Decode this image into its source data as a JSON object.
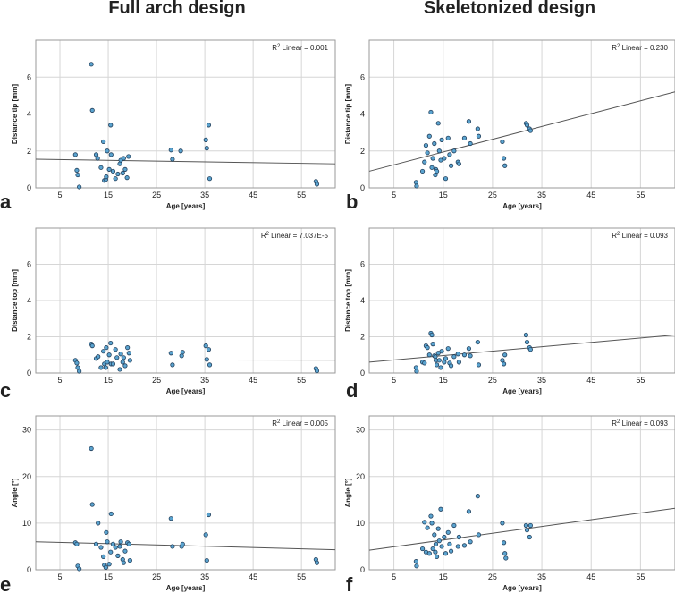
{
  "columns": [
    "Full arch design",
    "Skeletonized design"
  ],
  "chart_data": [
    {
      "panel": "a",
      "type": "scatter",
      "xlabel": "Age [years]",
      "ylabel": "Distance tip [mm]",
      "xlim": [
        0,
        62
      ],
      "ylim": [
        0,
        8
      ],
      "xticks": [
        5,
        15,
        25,
        35,
        45,
        55
      ],
      "yticks": [
        0,
        2,
        4,
        6
      ],
      "r2_label": "Linear = 0.001",
      "fit": {
        "x0": 0,
        "y0": 1.55,
        "x1": 62,
        "y1": 1.3
      },
      "points": [
        [
          8.2,
          1.8
        ],
        [
          8.5,
          0.95
        ],
        [
          8.7,
          0.7
        ],
        [
          9,
          0.05
        ],
        [
          11.5,
          6.7
        ],
        [
          11.7,
          4.2
        ],
        [
          12.5,
          1.8
        ],
        [
          12.8,
          1.6
        ],
        [
          13.5,
          1.1
        ],
        [
          14,
          2.5
        ],
        [
          14.2,
          0.4
        ],
        [
          14.5,
          0.45
        ],
        [
          14.6,
          0.6
        ],
        [
          14.8,
          2.0
        ],
        [
          15.2,
          1.0
        ],
        [
          15.5,
          3.4
        ],
        [
          15.6,
          1.8
        ],
        [
          16,
          0.9
        ],
        [
          16.5,
          0.5
        ],
        [
          17,
          0.75
        ],
        [
          17.4,
          1.3
        ],
        [
          17.6,
          1.5
        ],
        [
          18,
          0.8
        ],
        [
          18.2,
          1.6
        ],
        [
          18.5,
          1.0
        ],
        [
          18.9,
          0.55
        ],
        [
          19.2,
          1.7
        ],
        [
          28,
          2.05
        ],
        [
          28.3,
          1.55
        ],
        [
          30,
          2.0
        ],
        [
          35.2,
          2.6
        ],
        [
          35.4,
          2.15
        ],
        [
          35.8,
          3.4
        ],
        [
          36.0,
          0.5
        ],
        [
          58,
          0.35
        ],
        [
          58.2,
          0.2
        ]
      ]
    },
    {
      "panel": "b",
      "type": "scatter",
      "xlabel": "Age [years]",
      "ylabel": "Distance tip [mm]",
      "xlim": [
        0,
        62
      ],
      "ylim": [
        0,
        8
      ],
      "xticks": [
        5,
        15,
        25,
        35,
        45,
        55
      ],
      "yticks": [
        0,
        2,
        4,
        6
      ],
      "r2_label": "Linear = 0.230",
      "fit": {
        "x0": 0,
        "y0": 0.9,
        "x1": 62,
        "y1": 5.2
      },
      "points": [
        [
          9.5,
          0.3
        ],
        [
          9.6,
          0.1
        ],
        [
          10.8,
          0.9
        ],
        [
          11.2,
          1.4
        ],
        [
          11.5,
          2.3
        ],
        [
          11.8,
          1.9
        ],
        [
          12.2,
          2.8
        ],
        [
          12.5,
          4.1
        ],
        [
          12.7,
          1.1
        ],
        [
          12.9,
          1.6
        ],
        [
          13.2,
          2.4
        ],
        [
          13.4,
          0.7
        ],
        [
          13.5,
          1.0
        ],
        [
          13.7,
          0.9
        ],
        [
          14.0,
          3.5
        ],
        [
          14.2,
          2.0
        ],
        [
          14.5,
          1.5
        ],
        [
          14.7,
          2.6
        ],
        [
          15.2,
          1.6
        ],
        [
          15.5,
          0.5
        ],
        [
          16,
          2.7
        ],
        [
          16.3,
          1.8
        ],
        [
          16.6,
          1.2
        ],
        [
          17.2,
          2.0
        ],
        [
          18,
          1.4
        ],
        [
          18.2,
          1.3
        ],
        [
          19.3,
          2.7
        ],
        [
          20.2,
          3.6
        ],
        [
          20.5,
          2.4
        ],
        [
          22,
          3.2
        ],
        [
          22.2,
          2.8
        ],
        [
          27,
          2.5
        ],
        [
          27.3,
          1.6
        ],
        [
          27.5,
          1.2
        ],
        [
          31.8,
          3.5
        ],
        [
          32,
          3.4
        ],
        [
          32.5,
          3.2
        ],
        [
          32.7,
          3.1
        ]
      ]
    },
    {
      "panel": "c",
      "type": "scatter",
      "xlabel": "Age [years]",
      "ylabel": "Distance top [mm]",
      "xlim": [
        0,
        62
      ],
      "ylim": [
        0,
        8
      ],
      "xticks": [
        5,
        15,
        25,
        35,
        45,
        55
      ],
      "yticks": [
        0,
        2,
        4,
        6
      ],
      "r2_label": "Linear = 7.037E-5",
      "fit": {
        "x0": 0,
        "y0": 0.72,
        "x1": 62,
        "y1": 0.71
      },
      "points": [
        [
          8.2,
          0.7
        ],
        [
          8.5,
          0.55
        ],
        [
          8.7,
          0.3
        ],
        [
          9,
          0.1
        ],
        [
          11.5,
          1.6
        ],
        [
          11.7,
          1.5
        ],
        [
          12.5,
          0.8
        ],
        [
          12.9,
          0.9
        ],
        [
          13.5,
          0.3
        ],
        [
          14,
          1.2
        ],
        [
          14.2,
          0.5
        ],
        [
          14.5,
          0.3
        ],
        [
          14.6,
          1.4
        ],
        [
          14.8,
          0.6
        ],
        [
          15.2,
          1.0
        ],
        [
          15.5,
          1.65
        ],
        [
          15.6,
          0.5
        ],
        [
          16,
          0.5
        ],
        [
          16.5,
          1.3
        ],
        [
          16.8,
          0.85
        ],
        [
          17.4,
          0.2
        ],
        [
          17.6,
          1.05
        ],
        [
          18,
          0.6
        ],
        [
          18.2,
          0.85
        ],
        [
          18.5,
          0.4
        ],
        [
          19,
          1.4
        ],
        [
          19.3,
          1.1
        ],
        [
          19.5,
          0.7
        ],
        [
          28,
          1.1
        ],
        [
          28.3,
          0.45
        ],
        [
          30.2,
          0.95
        ],
        [
          30.4,
          1.15
        ],
        [
          35.2,
          1.5
        ],
        [
          35.4,
          0.75
        ],
        [
          35.8,
          1.3
        ],
        [
          36.0,
          0.45
        ],
        [
          58,
          0.25
        ],
        [
          58.2,
          0.12
        ]
      ]
    },
    {
      "panel": "d",
      "type": "scatter",
      "xlabel": "Age [years]",
      "ylabel": "Distance top [mm]",
      "xlim": [
        0,
        62
      ],
      "ylim": [
        0,
        8
      ],
      "xticks": [
        5,
        15,
        25,
        35,
        45,
        55
      ],
      "yticks": [
        0,
        2,
        4,
        6
      ],
      "r2_label": "Linear = 0.093",
      "fit": {
        "x0": 0,
        "y0": 0.6,
        "x1": 62,
        "y1": 2.1
      },
      "points": [
        [
          9.5,
          0.3
        ],
        [
          9.6,
          0.1
        ],
        [
          10.8,
          0.6
        ],
        [
          11.2,
          0.55
        ],
        [
          11.5,
          1.5
        ],
        [
          11.8,
          1.4
        ],
        [
          12.2,
          1.0
        ],
        [
          12.5,
          2.2
        ],
        [
          12.7,
          2.1
        ],
        [
          12.9,
          1.6
        ],
        [
          13.2,
          0.95
        ],
        [
          13.4,
          0.9
        ],
        [
          13.5,
          0.7
        ],
        [
          13.7,
          0.45
        ],
        [
          14.0,
          1.1
        ],
        [
          14.2,
          0.7
        ],
        [
          14.5,
          0.3
        ],
        [
          14.7,
          1.2
        ],
        [
          15.2,
          0.6
        ],
        [
          15.5,
          0.8
        ],
        [
          16,
          1.35
        ],
        [
          16.3,
          0.55
        ],
        [
          16.6,
          0.4
        ],
        [
          17.2,
          0.9
        ],
        [
          18,
          1.05
        ],
        [
          18.2,
          0.6
        ],
        [
          19.3,
          1.0
        ],
        [
          20.2,
          1.35
        ],
        [
          20.5,
          0.95
        ],
        [
          22,
          1.7
        ],
        [
          22.2,
          0.45
        ],
        [
          27,
          0.7
        ],
        [
          27.3,
          0.5
        ],
        [
          27.5,
          1.0
        ],
        [
          31.8,
          2.1
        ],
        [
          32,
          1.7
        ],
        [
          32.5,
          1.4
        ],
        [
          32.7,
          1.3
        ]
      ]
    },
    {
      "panel": "e",
      "type": "scatter",
      "xlabel": "Age [years]",
      "ylabel": "Angle [°]",
      "xlim": [
        0,
        62
      ],
      "ylim": [
        0,
        33
      ],
      "xticks": [
        5,
        15,
        25,
        35,
        45,
        55
      ],
      "yticks": [
        0,
        10,
        20,
        30
      ],
      "r2_label": "Linear = 0.005",
      "fit": {
        "x0": 0,
        "y0": 6.0,
        "x1": 62,
        "y1": 4.3
      },
      "points": [
        [
          8.2,
          5.8
        ],
        [
          8.5,
          5.5
        ],
        [
          8.7,
          0.8
        ],
        [
          9,
          0.2
        ],
        [
          11.5,
          26
        ],
        [
          11.7,
          14
        ],
        [
          12.5,
          5.5
        ],
        [
          12.9,
          10
        ],
        [
          13.5,
          4.8
        ],
        [
          14,
          2.8
        ],
        [
          14.2,
          1.0
        ],
        [
          14.5,
          0.5
        ],
        [
          14.6,
          8.0
        ],
        [
          14.8,
          6.0
        ],
        [
          15.2,
          1.2
        ],
        [
          15.5,
          3.8
        ],
        [
          15.6,
          12
        ],
        [
          16,
          5.5
        ],
        [
          16.5,
          4.8
        ],
        [
          17,
          3.0
        ],
        [
          17.4,
          5.0
        ],
        [
          17.6,
          6.0
        ],
        [
          18,
          2.2
        ],
        [
          18.2,
          1.5
        ],
        [
          18.5,
          4.0
        ],
        [
          19,
          5.8
        ],
        [
          19.3,
          5.5
        ],
        [
          19.5,
          2.0
        ],
        [
          28,
          11
        ],
        [
          28.3,
          5.0
        ],
        [
          30.2,
          5.0
        ],
        [
          30.4,
          5.5
        ],
        [
          35.2,
          7.5
        ],
        [
          35.4,
          2.0
        ],
        [
          35.8,
          11.8
        ],
        [
          58,
          2.2
        ],
        [
          58.2,
          1.5
        ]
      ]
    },
    {
      "panel": "f",
      "type": "scatter",
      "xlabel": "Age [years]",
      "ylabel": "Angle [°]",
      "xlim": [
        0,
        62
      ],
      "ylim": [
        0,
        33
      ],
      "xticks": [
        5,
        15,
        25,
        35,
        45,
        55
      ],
      "yticks": [
        0,
        10,
        20,
        30
      ],
      "r2_label": "Linear = 0.093",
      "fit": {
        "x0": 0,
        "y0": 4.2,
        "x1": 62,
        "y1": 13.2
      },
      "points": [
        [
          9.5,
          1.8
        ],
        [
          9.6,
          0.8
        ],
        [
          10.8,
          4.5
        ],
        [
          11.2,
          10.2
        ],
        [
          11.5,
          3.8
        ],
        [
          11.8,
          9.0
        ],
        [
          12.2,
          3.5
        ],
        [
          12.5,
          11.5
        ],
        [
          12.7,
          10
        ],
        [
          12.9,
          4.5
        ],
        [
          13.2,
          7.5
        ],
        [
          13.4,
          3.8
        ],
        [
          13.5,
          5.5
        ],
        [
          13.7,
          2.8
        ],
        [
          14.0,
          8.8
        ],
        [
          14.2,
          6.2
        ],
        [
          14.5,
          13
        ],
        [
          14.7,
          5.0
        ],
        [
          15.2,
          7.0
        ],
        [
          15.5,
          3.5
        ],
        [
          16,
          8.0
        ],
        [
          16.3,
          5.5
        ],
        [
          16.6,
          4.0
        ],
        [
          17.2,
          9.5
        ],
        [
          18,
          5.0
        ],
        [
          18.2,
          7.0
        ],
        [
          19.3,
          5.2
        ],
        [
          20.2,
          12.5
        ],
        [
          20.5,
          6.0
        ],
        [
          22,
          15.8
        ],
        [
          22.2,
          7.5
        ],
        [
          27,
          10
        ],
        [
          27.3,
          5.8
        ],
        [
          27.5,
          3.5
        ],
        [
          27.7,
          2.5
        ],
        [
          31.8,
          9.5
        ],
        [
          32,
          8.5
        ],
        [
          32.5,
          7.0
        ],
        [
          32.7,
          9.5
        ]
      ]
    }
  ]
}
